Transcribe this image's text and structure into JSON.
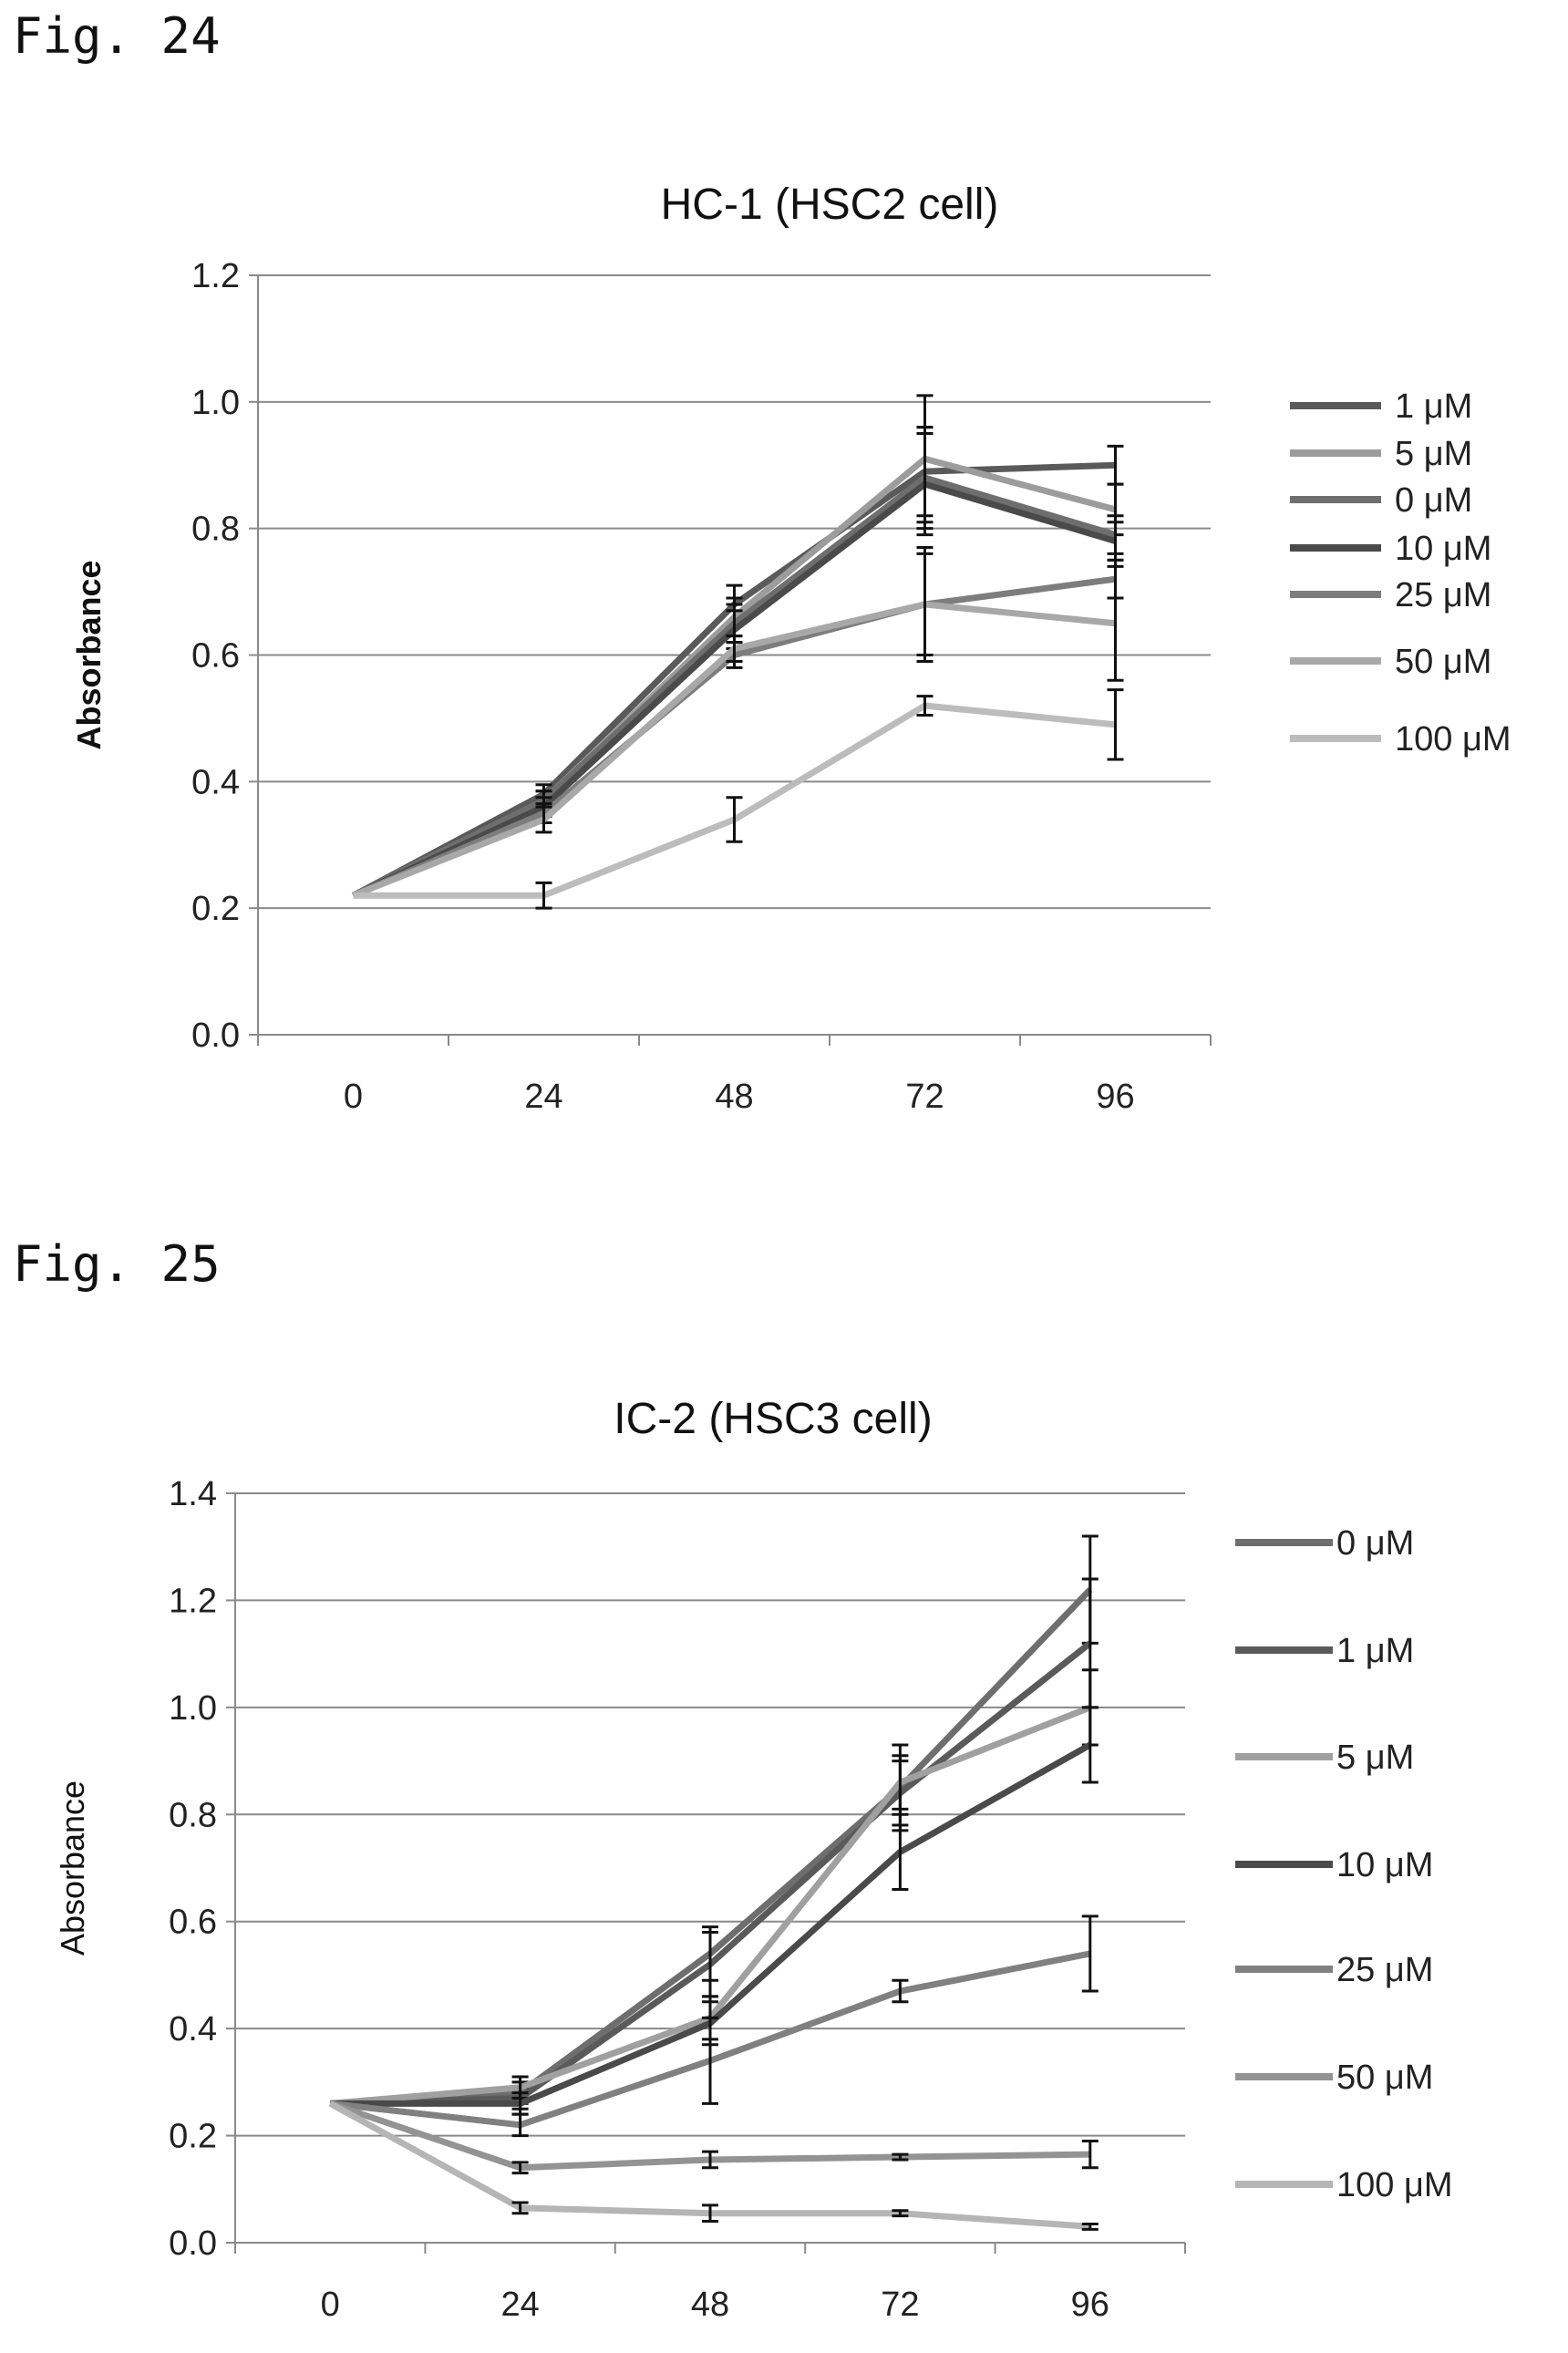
{
  "figures": [
    {
      "label": "Fig. 24"
    },
    {
      "label": "Fig. 25"
    }
  ],
  "chart_data": [
    {
      "type": "line",
      "title": "HC-1 (HSC2 cell)",
      "xlabel": "",
      "ylabel": "Absorbance",
      "categories": [
        "0",
        "24",
        "48",
        "72",
        "96"
      ],
      "ylim": [
        0,
        1.2
      ],
      "yticks": [
        "0.0",
        "0.2",
        "0.4",
        "0.6",
        "0.8",
        "1.0",
        "1.2"
      ],
      "grid": true,
      "legend_position": "right",
      "series": [
        {
          "name": "1 μM",
          "values": [
            0.22,
            0.38,
            0.68,
            0.89,
            0.9
          ],
          "error": [
            0,
            0.015,
            0.03,
            0.07,
            0.03
          ],
          "color": "#5a5a5a"
        },
        {
          "name": "5 μM",
          "values": [
            0.22,
            0.37,
            0.66,
            0.91,
            0.83
          ],
          "error": [
            0,
            0.015,
            0.03,
            0.1,
            0.04
          ],
          "color": "#9c9c9c"
        },
        {
          "name": "0 μM",
          "values": [
            0.22,
            0.37,
            0.65,
            0.88,
            0.79
          ],
          "error": [
            0,
            0.015,
            0.03,
            0.08,
            0.03
          ],
          "color": "#6e6e6e"
        },
        {
          "name": "10 μM",
          "values": [
            0.22,
            0.36,
            0.64,
            0.87,
            0.78
          ],
          "error": [
            0,
            0.015,
            0.03,
            0.08,
            0.03
          ],
          "color": "#4a4a4a"
        },
        {
          "name": "25 μM",
          "values": [
            0.22,
            0.35,
            0.6,
            0.68,
            0.72
          ],
          "error": [
            0,
            0.015,
            0.02,
            0.08,
            0.03
          ],
          "color": "#7d7d7d"
        },
        {
          "name": "50 μM",
          "values": [
            0.22,
            0.34,
            0.61,
            0.68,
            0.65
          ],
          "error": [
            0,
            0.02,
            0.02,
            0.09,
            0.09
          ],
          "color": "#a8a8a8"
        },
        {
          "name": "100 μM",
          "values": [
            0.22,
            0.22,
            0.34,
            0.52,
            0.49
          ],
          "error": [
            0,
            0.02,
            0.035,
            0.015,
            0.055
          ],
          "color": "#bcbcbc"
        }
      ]
    },
    {
      "type": "line",
      "title": "IC-2 (HSC3 cell)",
      "xlabel": "",
      "ylabel": "Absorbance",
      "categories": [
        "0",
        "24",
        "48",
        "72",
        "96"
      ],
      "ylim": [
        0,
        1.4
      ],
      "yticks": [
        "0.0",
        "0.2",
        "0.4",
        "0.6",
        "0.8",
        "1.0",
        "1.2",
        "1.4"
      ],
      "grid": true,
      "legend_position": "right",
      "series": [
        {
          "name": "0 μM",
          "values": [
            0.26,
            0.28,
            0.54,
            0.85,
            1.22
          ],
          "error": [
            0,
            0.02,
            0.05,
            0.08,
            0.1
          ],
          "color": "#6e6e6e"
        },
        {
          "name": "1 μM",
          "values": [
            0.26,
            0.27,
            0.52,
            0.84,
            1.12
          ],
          "error": [
            0,
            0.02,
            0.06,
            0.06,
            0.12
          ],
          "color": "#5a5a5a"
        },
        {
          "name": "5 μM",
          "values": [
            0.26,
            0.29,
            0.42,
            0.86,
            1.0
          ],
          "error": [
            0,
            0.02,
            0.04,
            0.05,
            0.07
          ],
          "color": "#a0a0a0"
        },
        {
          "name": "10 μM",
          "values": [
            0.26,
            0.26,
            0.41,
            0.73,
            0.93
          ],
          "error": [
            0,
            0.02,
            0.04,
            0.07,
            0.07
          ],
          "color": "#4a4a4a"
        },
        {
          "name": "25 μM",
          "values": [
            0.26,
            0.22,
            0.34,
            0.47,
            0.54
          ],
          "error": [
            0,
            0.02,
            0.08,
            0.02,
            0.07
          ],
          "color": "#808080"
        },
        {
          "name": "50 μM",
          "values": [
            0.26,
            0.14,
            0.155,
            0.16,
            0.165
          ],
          "error": [
            0,
            0.01,
            0.015,
            0.005,
            0.025
          ],
          "color": "#939393"
        },
        {
          "name": "100 μM",
          "values": [
            0.26,
            0.065,
            0.055,
            0.055,
            0.03
          ],
          "error": [
            0,
            0.01,
            0.015,
            0.005,
            0.005
          ],
          "color": "#b5b5b5"
        }
      ]
    }
  ]
}
